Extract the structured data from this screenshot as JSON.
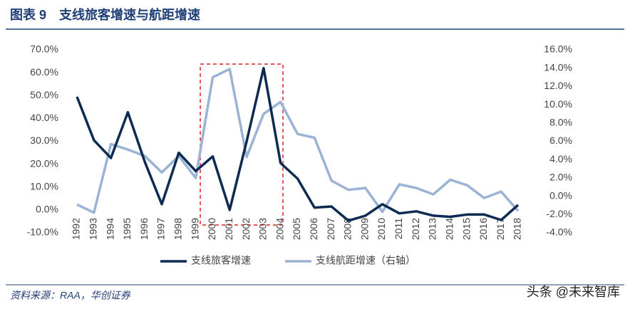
{
  "chart_data": {
    "type": "line",
    "title": "图表 9　支线旅客增速与航距增速",
    "source": "资料来源：RAA，华创证券",
    "watermark": "头条 @未来智库",
    "categories": [
      "1992",
      "1993",
      "1994",
      "1995",
      "1996",
      "1997",
      "1998",
      "1999",
      "2000",
      "2001",
      "2002",
      "2003",
      "2004",
      "2005",
      "2006",
      "2007",
      "2008",
      "2009",
      "2010",
      "2011",
      "2012",
      "2013",
      "2014",
      "2015",
      "2016",
      "2017",
      "2018"
    ],
    "series": [
      {
        "name": "支线旅客增速",
        "color": "#0d2b52",
        "values": [
          49.5,
          30.5,
          22.7,
          42.7,
          21,
          2.5,
          25,
          17,
          23.4,
          0,
          30,
          62,
          20.5,
          13.7,
          1,
          1.5,
          -4.7,
          -2.5,
          2.5,
          -1.5,
          -0.6,
          -2.5,
          -3,
          -2,
          -2,
          -4.4,
          2.2
        ]
      },
      {
        "name": "支线航距增速（右轴）",
        "color": "#9bb3d4",
        "axis": "y2",
        "values": [
          -0.9,
          -1.8,
          5.7,
          5.1,
          4.4,
          2.6,
          4.4,
          2.0,
          13.0,
          13.9,
          4.3,
          9.0,
          10.3,
          6.8,
          6.4,
          1.7,
          0.7,
          0.9,
          -1.7,
          1.3,
          0.9,
          0.2,
          1.8,
          1.2,
          -0.2,
          0.5,
          -1.6
        ]
      }
    ],
    "ylim": [
      -10,
      70
    ],
    "yticks": [
      {
        "value": -10,
        "label": "-10.0%"
      },
      {
        "value": 0,
        "label": "0.0%"
      },
      {
        "value": 10,
        "label": "10.0%"
      },
      {
        "value": 20,
        "label": "20.0%"
      },
      {
        "value": 30,
        "label": "30.0%"
      },
      {
        "value": 40,
        "label": "40.0%"
      },
      {
        "value": 50,
        "label": "50.0%"
      },
      {
        "value": 60,
        "label": "60.0%"
      },
      {
        "value": 70,
        "label": "70.0%"
      }
    ],
    "y2lim": [
      -4,
      16
    ],
    "y2ticks": [
      {
        "value": -4,
        "label": "-4.0%"
      },
      {
        "value": -2,
        "label": "-2.0%"
      },
      {
        "value": 0,
        "label": "0.0%"
      },
      {
        "value": 2,
        "label": "2.0%"
      },
      {
        "value": 4,
        "label": "4.0%"
      },
      {
        "value": 6,
        "label": "6.0%"
      },
      {
        "value": 8,
        "label": "8.0%"
      },
      {
        "value": 10,
        "label": "10.0%"
      },
      {
        "value": 12,
        "label": "12.0%"
      },
      {
        "value": 14,
        "label": "14.0%"
      },
      {
        "value": 16,
        "label": "16.0%"
      }
    ],
    "legend": "bottom"
  }
}
